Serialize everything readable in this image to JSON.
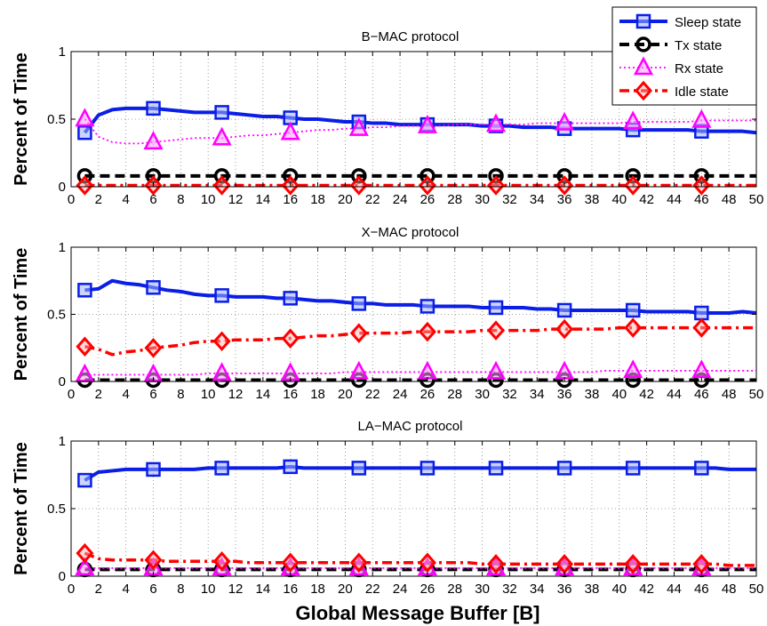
{
  "figure": {
    "xlabel": "Global Message Buffer [B]"
  },
  "legend": {
    "entries": [
      {
        "label": "Sleep state",
        "color": "#0a1ee6",
        "marker": "square",
        "dash": "solid"
      },
      {
        "label": "Tx state",
        "color": "#000000",
        "marker": "circle",
        "dash": "dash"
      },
      {
        "label": "Rx state",
        "color": "#ff00ff",
        "marker": "triangle",
        "dash": "dot"
      },
      {
        "label": "Idle state",
        "color": "#ff0000",
        "marker": "diamond",
        "dash": "dashdot"
      }
    ]
  },
  "chart_data": [
    {
      "type": "line",
      "title": "B−MAC protocol",
      "ylabel": "Percent of Time",
      "xlim": [
        0,
        50
      ],
      "ylim": [
        0,
        1
      ],
      "yticks": [
        "0",
        "0.5",
        "1"
      ],
      "xticks": [
        0,
        2,
        4,
        6,
        8,
        10,
        12,
        14,
        16,
        18,
        20,
        22,
        24,
        26,
        28,
        30,
        32,
        34,
        36,
        38,
        40,
        42,
        44,
        46,
        48,
        50
      ],
      "grid": true,
      "legend_position": "top-right",
      "x": [
        1,
        2,
        3,
        4,
        5,
        6,
        7,
        8,
        9,
        10,
        11,
        12,
        13,
        14,
        15,
        16,
        17,
        18,
        19,
        20,
        21,
        22,
        23,
        24,
        25,
        26,
        27,
        28,
        29,
        30,
        31,
        32,
        33,
        34,
        35,
        36,
        37,
        38,
        39,
        40,
        41,
        42,
        43,
        44,
        45,
        46,
        47,
        48,
        49,
        50
      ],
      "marker_x": [
        1,
        6,
        11,
        16,
        21,
        26,
        31,
        36,
        41,
        46
      ],
      "series": [
        {
          "name": "Sleep state",
          "values": [
            0.4,
            0.53,
            0.57,
            0.58,
            0.58,
            0.58,
            0.57,
            0.56,
            0.55,
            0.55,
            0.55,
            0.54,
            0.53,
            0.52,
            0.52,
            0.51,
            0.5,
            0.5,
            0.49,
            0.48,
            0.48,
            0.47,
            0.47,
            0.46,
            0.46,
            0.46,
            0.46,
            0.46,
            0.46,
            0.45,
            0.45,
            0.45,
            0.44,
            0.44,
            0.44,
            0.43,
            0.43,
            0.43,
            0.43,
            0.43,
            0.42,
            0.42,
            0.42,
            0.42,
            0.42,
            0.41,
            0.41,
            0.41,
            0.41,
            0.4
          ]
        },
        {
          "name": "Tx state",
          "values": [
            0.08,
            0.08,
            0.08,
            0.08,
            0.08,
            0.08,
            0.08,
            0.08,
            0.08,
            0.08,
            0.08,
            0.08,
            0.08,
            0.08,
            0.08,
            0.08,
            0.08,
            0.08,
            0.08,
            0.08,
            0.08,
            0.08,
            0.08,
            0.08,
            0.08,
            0.08,
            0.08,
            0.08,
            0.08,
            0.08,
            0.08,
            0.08,
            0.08,
            0.08,
            0.08,
            0.08,
            0.08,
            0.08,
            0.08,
            0.08,
            0.08,
            0.08,
            0.08,
            0.08,
            0.08,
            0.08,
            0.08,
            0.08,
            0.08,
            0.08
          ]
        },
        {
          "name": "Rx state",
          "values": [
            0.5,
            0.37,
            0.33,
            0.32,
            0.32,
            0.33,
            0.34,
            0.35,
            0.36,
            0.36,
            0.36,
            0.37,
            0.38,
            0.38,
            0.39,
            0.4,
            0.41,
            0.42,
            0.42,
            0.43,
            0.43,
            0.44,
            0.44,
            0.45,
            0.45,
            0.45,
            0.45,
            0.46,
            0.46,
            0.46,
            0.46,
            0.46,
            0.46,
            0.47,
            0.47,
            0.47,
            0.47,
            0.47,
            0.47,
            0.47,
            0.48,
            0.48,
            0.48,
            0.48,
            0.48,
            0.49,
            0.49,
            0.49,
            0.49,
            0.49
          ]
        },
        {
          "name": "Idle state",
          "values": [
            0.01,
            0.01,
            0.01,
            0.01,
            0.01,
            0.01,
            0.01,
            0.01,
            0.01,
            0.01,
            0.01,
            0.01,
            0.01,
            0.01,
            0.01,
            0.01,
            0.01,
            0.01,
            0.01,
            0.01,
            0.01,
            0.01,
            0.01,
            0.01,
            0.01,
            0.01,
            0.01,
            0.01,
            0.01,
            0.01,
            0.01,
            0.01,
            0.01,
            0.01,
            0.01,
            0.01,
            0.01,
            0.01,
            0.01,
            0.01,
            0.01,
            0.01,
            0.01,
            0.01,
            0.01,
            0.01,
            0.01,
            0.01,
            0.01,
            0.01
          ]
        }
      ]
    },
    {
      "type": "line",
      "title": "X−MAC protocol",
      "ylabel": "Percent of Time",
      "xlim": [
        0,
        50
      ],
      "ylim": [
        0,
        1
      ],
      "yticks": [
        "0",
        "0.5",
        "1"
      ],
      "xticks": [
        0,
        2,
        4,
        6,
        8,
        10,
        12,
        14,
        16,
        18,
        20,
        22,
        24,
        26,
        28,
        30,
        32,
        34,
        36,
        38,
        40,
        42,
        44,
        46,
        48,
        50
      ],
      "grid": true,
      "x": [
        1,
        2,
        3,
        4,
        5,
        6,
        7,
        8,
        9,
        10,
        11,
        12,
        13,
        14,
        15,
        16,
        17,
        18,
        19,
        20,
        21,
        22,
        23,
        24,
        25,
        26,
        27,
        28,
        29,
        30,
        31,
        32,
        33,
        34,
        35,
        36,
        37,
        38,
        39,
        40,
        41,
        42,
        43,
        44,
        45,
        46,
        47,
        48,
        49,
        50
      ],
      "marker_x": [
        1,
        6,
        11,
        16,
        21,
        26,
        31,
        36,
        41,
        46
      ],
      "series": [
        {
          "name": "Sleep state",
          "values": [
            0.68,
            0.69,
            0.75,
            0.73,
            0.72,
            0.7,
            0.68,
            0.67,
            0.65,
            0.64,
            0.64,
            0.63,
            0.63,
            0.63,
            0.62,
            0.62,
            0.61,
            0.6,
            0.6,
            0.59,
            0.58,
            0.58,
            0.57,
            0.57,
            0.57,
            0.56,
            0.56,
            0.56,
            0.56,
            0.55,
            0.55,
            0.55,
            0.55,
            0.54,
            0.54,
            0.53,
            0.53,
            0.53,
            0.53,
            0.53,
            0.53,
            0.52,
            0.52,
            0.52,
            0.52,
            0.51,
            0.51,
            0.51,
            0.52,
            0.51
          ]
        },
        {
          "name": "Tx state",
          "values": [
            0.01,
            0.01,
            0.01,
            0.01,
            0.01,
            0.01,
            0.01,
            0.01,
            0.01,
            0.01,
            0.01,
            0.01,
            0.01,
            0.01,
            0.01,
            0.01,
            0.01,
            0.01,
            0.01,
            0.01,
            0.01,
            0.01,
            0.01,
            0.01,
            0.01,
            0.01,
            0.01,
            0.01,
            0.01,
            0.01,
            0.01,
            0.01,
            0.01,
            0.01,
            0.01,
            0.01,
            0.01,
            0.01,
            0.01,
            0.01,
            0.01,
            0.01,
            0.01,
            0.01,
            0.01,
            0.01,
            0.01,
            0.01,
            0.01,
            0.01
          ]
        },
        {
          "name": "Rx state",
          "values": [
            0.05,
            0.05,
            0.05,
            0.05,
            0.05,
            0.05,
            0.05,
            0.05,
            0.05,
            0.06,
            0.06,
            0.06,
            0.06,
            0.06,
            0.06,
            0.06,
            0.06,
            0.06,
            0.06,
            0.07,
            0.07,
            0.07,
            0.07,
            0.07,
            0.07,
            0.07,
            0.07,
            0.07,
            0.07,
            0.07,
            0.07,
            0.07,
            0.07,
            0.07,
            0.07,
            0.07,
            0.07,
            0.07,
            0.08,
            0.08,
            0.08,
            0.08,
            0.08,
            0.08,
            0.08,
            0.08,
            0.08,
            0.08,
            0.08,
            0.08
          ]
        },
        {
          "name": "Idle state",
          "values": [
            0.26,
            0.24,
            0.2,
            0.22,
            0.23,
            0.25,
            0.26,
            0.27,
            0.29,
            0.3,
            0.3,
            0.31,
            0.31,
            0.31,
            0.32,
            0.32,
            0.33,
            0.34,
            0.34,
            0.35,
            0.36,
            0.36,
            0.36,
            0.36,
            0.37,
            0.37,
            0.37,
            0.37,
            0.37,
            0.38,
            0.38,
            0.38,
            0.38,
            0.38,
            0.39,
            0.39,
            0.39,
            0.39,
            0.39,
            0.4,
            0.4,
            0.4,
            0.4,
            0.4,
            0.4,
            0.4,
            0.4,
            0.4,
            0.4,
            0.4
          ]
        }
      ]
    },
    {
      "type": "line",
      "title": "LA−MAC protocol",
      "ylabel": "Percent of Time",
      "xlim": [
        0,
        50
      ],
      "ylim": [
        0,
        1
      ],
      "yticks": [
        "0",
        "0.5",
        "1"
      ],
      "xticks": [
        0,
        2,
        4,
        6,
        8,
        10,
        12,
        14,
        16,
        18,
        20,
        22,
        24,
        26,
        28,
        30,
        32,
        34,
        36,
        38,
        40,
        42,
        44,
        46,
        48,
        50
      ],
      "grid": true,
      "x": [
        1,
        2,
        3,
        4,
        5,
        6,
        7,
        8,
        9,
        10,
        11,
        12,
        13,
        14,
        15,
        16,
        17,
        18,
        19,
        20,
        21,
        22,
        23,
        24,
        25,
        26,
        27,
        28,
        29,
        30,
        31,
        32,
        33,
        34,
        35,
        36,
        37,
        38,
        39,
        40,
        41,
        42,
        43,
        44,
        45,
        46,
        47,
        48,
        49,
        50
      ],
      "marker_x": [
        1,
        6,
        11,
        16,
        21,
        26,
        31,
        36,
        41,
        46
      ],
      "series": [
        {
          "name": "Sleep state",
          "values": [
            0.71,
            0.77,
            0.78,
            0.79,
            0.79,
            0.79,
            0.79,
            0.79,
            0.79,
            0.8,
            0.8,
            0.8,
            0.8,
            0.8,
            0.8,
            0.81,
            0.8,
            0.8,
            0.8,
            0.8,
            0.8,
            0.8,
            0.8,
            0.8,
            0.8,
            0.8,
            0.8,
            0.8,
            0.8,
            0.8,
            0.8,
            0.8,
            0.8,
            0.8,
            0.8,
            0.8,
            0.8,
            0.8,
            0.8,
            0.8,
            0.8,
            0.8,
            0.8,
            0.8,
            0.8,
            0.8,
            0.8,
            0.79,
            0.79,
            0.79
          ]
        },
        {
          "name": "Tx state",
          "values": [
            0.05,
            0.05,
            0.05,
            0.05,
            0.05,
            0.05,
            0.05,
            0.05,
            0.05,
            0.05,
            0.05,
            0.05,
            0.05,
            0.05,
            0.05,
            0.05,
            0.05,
            0.05,
            0.05,
            0.05,
            0.05,
            0.05,
            0.05,
            0.05,
            0.05,
            0.05,
            0.05,
            0.05,
            0.05,
            0.05,
            0.05,
            0.05,
            0.05,
            0.05,
            0.05,
            0.05,
            0.05,
            0.05,
            0.05,
            0.05,
            0.05,
            0.05,
            0.05,
            0.05,
            0.05,
            0.05,
            0.05,
            0.05,
            0.05,
            0.05
          ]
        },
        {
          "name": "Rx state",
          "values": [
            0.06,
            0.06,
            0.06,
            0.06,
            0.06,
            0.06,
            0.06,
            0.06,
            0.06,
            0.06,
            0.06,
            0.06,
            0.06,
            0.06,
            0.06,
            0.06,
            0.06,
            0.06,
            0.06,
            0.06,
            0.06,
            0.06,
            0.06,
            0.06,
            0.06,
            0.06,
            0.06,
            0.06,
            0.06,
            0.06,
            0.06,
            0.06,
            0.06,
            0.06,
            0.06,
            0.06,
            0.06,
            0.06,
            0.06,
            0.06,
            0.06,
            0.06,
            0.06,
            0.06,
            0.06,
            0.06,
            0.06,
            0.06,
            0.06,
            0.06
          ]
        },
        {
          "name": "Idle state",
          "values": [
            0.17,
            0.13,
            0.12,
            0.12,
            0.12,
            0.12,
            0.11,
            0.11,
            0.11,
            0.11,
            0.11,
            0.11,
            0.1,
            0.1,
            0.1,
            0.1,
            0.1,
            0.1,
            0.1,
            0.1,
            0.1,
            0.1,
            0.1,
            0.1,
            0.1,
            0.1,
            0.1,
            0.1,
            0.1,
            0.09,
            0.09,
            0.09,
            0.09,
            0.09,
            0.09,
            0.09,
            0.09,
            0.09,
            0.09,
            0.09,
            0.09,
            0.09,
            0.09,
            0.09,
            0.09,
            0.09,
            0.09,
            0.08,
            0.08,
            0.08
          ]
        }
      ]
    }
  ]
}
